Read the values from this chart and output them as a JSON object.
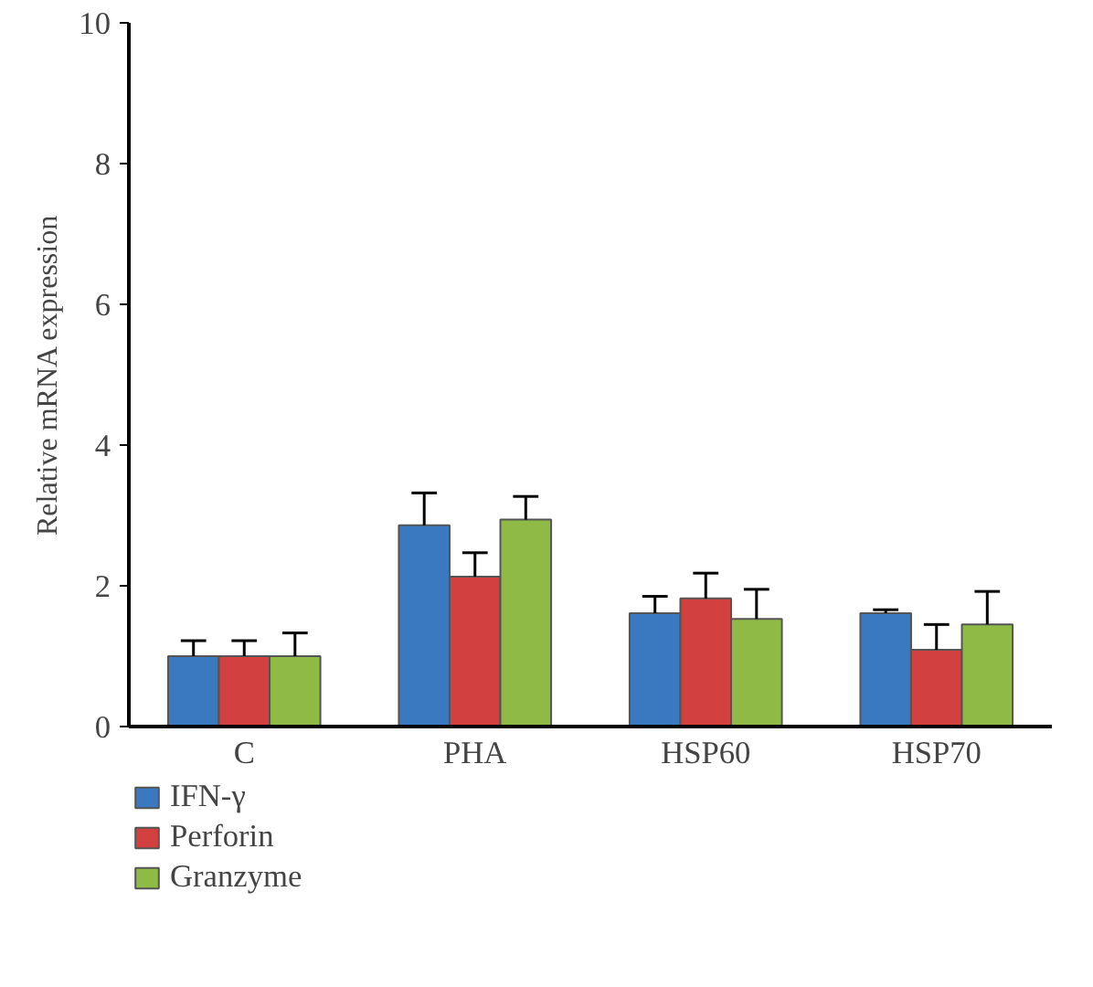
{
  "chart_data": {
    "type": "bar",
    "ylabel": "Relative mRNA expression",
    "categories": [
      "C",
      "PHA",
      "HSP60",
      "HSP70"
    ],
    "series": [
      {
        "name": "IFN-γ",
        "color": "#3a78c0",
        "values": [
          1.0,
          2.86,
          1.61,
          1.61
        ],
        "errors": [
          [
            1.0,
            1.22
          ],
          [
            2.86,
            3.32
          ],
          [
            1.61,
            1.85
          ],
          [
            1.61,
            1.66
          ]
        ]
      },
      {
        "name": "Perforin",
        "color": "#d2403f",
        "values": [
          1.0,
          2.13,
          1.82,
          1.09
        ],
        "errors": [
          [
            1.0,
            1.22
          ],
          [
            2.13,
            2.47
          ],
          [
            1.82,
            2.18
          ],
          [
            1.09,
            1.45
          ]
        ]
      },
      {
        "name": "Granzyme",
        "color": "#8fba46",
        "values": [
          1.0,
          2.94,
          1.53,
          1.45
        ],
        "errors": [
          [
            1.0,
            1.33
          ],
          [
            2.94,
            3.27
          ],
          [
            1.53,
            1.95
          ],
          [
            1.45,
            1.92
          ]
        ]
      }
    ],
    "ylim": [
      0,
      10
    ],
    "yticks": [
      0,
      2,
      4,
      6,
      8,
      10
    ],
    "grid": false,
    "legend": "bottom left"
  }
}
